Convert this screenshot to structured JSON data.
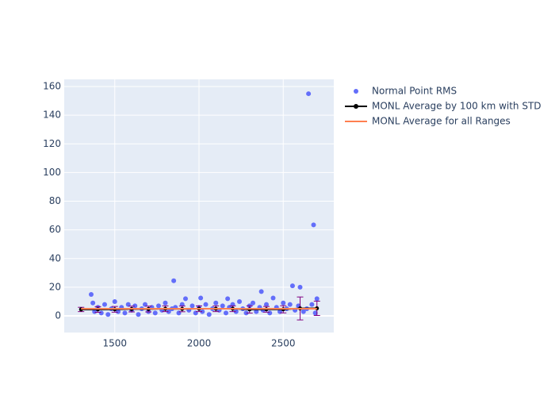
{
  "chart_data": {
    "type": "scatter",
    "xlim": [
      1200,
      2800
    ],
    "xticks": [
      1500,
      2000,
      2500
    ],
    "ylim": [
      -11.6,
      165
    ],
    "yticks": [
      0,
      20,
      40,
      60,
      80,
      100,
      120,
      140,
      160
    ],
    "grid": true,
    "legend": "outside-right",
    "series": [
      {
        "name": "Normal Point RMS",
        "mode": "markers",
        "color": "#636efa",
        "x": [
          1360,
          1370,
          1380,
          1400,
          1420,
          1440,
          1460,
          1480,
          1500,
          1520,
          1540,
          1560,
          1580,
          1600,
          1620,
          1640,
          1660,
          1680,
          1700,
          1720,
          1740,
          1760,
          1780,
          1800,
          1820,
          1840,
          1850,
          1860,
          1880,
          1900,
          1920,
          1940,
          1960,
          1980,
          2000,
          2010,
          2020,
          2040,
          2060,
          2080,
          2100,
          2120,
          2140,
          2160,
          2170,
          2180,
          2200,
          2220,
          2240,
          2260,
          2280,
          2300,
          2320,
          2340,
          2360,
          2370,
          2380,
          2400,
          2420,
          2440,
          2460,
          2480,
          2500,
          2520,
          2540,
          2555,
          2570,
          2590,
          2600,
          2620,
          2640,
          2650,
          2670,
          2680,
          2690,
          2700
        ],
        "values": [
          15,
          9,
          3,
          6,
          2,
          8,
          1,
          5,
          10,
          3,
          6,
          2,
          8,
          4,
          7,
          1,
          5,
          8,
          3,
          6,
          2,
          7,
          4,
          9,
          3,
          5,
          24.5,
          6,
          2,
          8,
          12,
          4,
          7,
          2,
          6,
          12.5,
          3,
          8,
          1,
          5,
          9,
          4,
          7,
          2,
          12,
          6,
          8,
          3,
          10,
          5,
          2,
          7,
          9,
          3,
          6,
          17,
          4,
          8,
          2,
          12.5,
          6,
          3,
          9,
          5,
          8,
          21,
          4,
          7,
          20,
          3,
          5,
          155,
          8,
          63.5,
          2,
          12
        ]
      },
      {
        "name": "MONL Average by 100 km with STD",
        "mode": "lines+markers",
        "color": "#000000",
        "error_color": "#800080",
        "x": [
          1300,
          1400,
          1500,
          1600,
          1700,
          1800,
          1900,
          2000,
          2100,
          2200,
          2300,
          2400,
          2500,
          2600,
          2700
        ],
        "values": [
          4.5,
          4.5,
          4.6,
          4.8,
          4.8,
          5,
          4.9,
          5,
          5,
          5,
          4.5,
          4.6,
          4.6,
          5.2,
          5.3
        ],
        "errors": [
          1.5,
          2,
          2,
          2,
          2,
          2,
          2,
          2,
          2,
          2,
          2.5,
          2,
          2.5,
          8,
          5
        ]
      },
      {
        "name": "MONL Average for all Ranges",
        "mode": "lines",
        "color": "#ff7f50",
        "x": [
          1300,
          2700
        ],
        "values": [
          5,
          5
        ]
      }
    ]
  }
}
